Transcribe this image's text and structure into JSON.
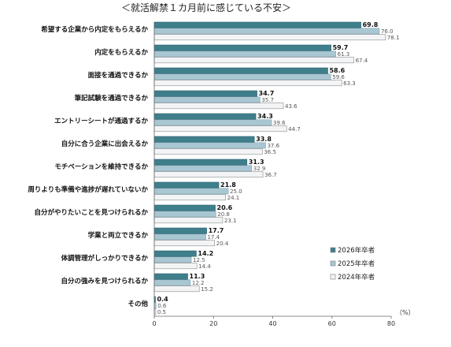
{
  "chart_data": {
    "type": "bar",
    "orientation": "horizontal",
    "title": "＜就活解禁１カ月前に感じている不安＞",
    "categories": [
      "希望する企業から内定をもらえるか",
      "内定をもらえるか",
      "面接を通過できるか",
      "筆記試験を通過できるか",
      "エントリーシートが通過するか",
      "自分に合う企業に出会えるか",
      "モチベーションを維持できるか",
      "周りよりも準備や進捗が遅れていないか",
      "自分がやりたいことを見つけられるか",
      "学業と両立できるか",
      "体調管理がしっかりできるか",
      "自分の強みを見つけられるか",
      "その他"
    ],
    "series": [
      {
        "name": "2026年卒者",
        "color": "#3f7f8c",
        "values": [
          69.8,
          59.7,
          58.6,
          34.7,
          34.3,
          33.8,
          31.3,
          21.8,
          20.6,
          17.7,
          14.2,
          11.3,
          0.4
        ]
      },
      {
        "name": "2025年卒者",
        "color": "#a9c7d2",
        "values": [
          76.0,
          61.3,
          59.6,
          35.7,
          39.6,
          37.6,
          32.9,
          25.0,
          20.8,
          17.4,
          12.5,
          12.2,
          0.6
        ]
      },
      {
        "name": "2024年卒者",
        "color": "#f2f4f5",
        "values": [
          78.1,
          67.4,
          63.3,
          43.6,
          44.7,
          36.5,
          36.7,
          24.1,
          23.1,
          20.4,
          14.4,
          15.2,
          0.5
        ]
      }
    ],
    "xlim": [
      0,
      80
    ],
    "xticks": [
      0,
      20,
      40,
      60,
      80
    ],
    "xunit": "（%）",
    "grid": false,
    "legend": {
      "position": "bottom-right"
    }
  }
}
